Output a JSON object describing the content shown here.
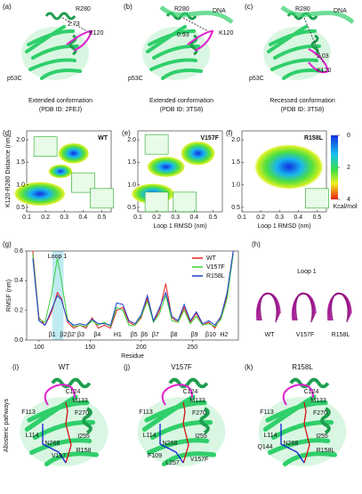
{
  "structures": [
    {
      "label": "(a)",
      "labels": [
        "R280",
        "2.73",
        "K120",
        "p53C"
      ],
      "caption": [
        "Extended conformation",
        "(PDB ID: 2FEJ)"
      ]
    },
    {
      "label": "(b)",
      "labels": [
        "R280",
        "DNA",
        "0.93",
        "K120",
        "p53C"
      ],
      "caption": [
        "Extended conformation",
        "(PDB ID: 3TS8)"
      ]
    },
    {
      "label": "(c)",
      "labels": [
        "R280",
        "DNA",
        "2.03",
        "K120",
        "p53C"
      ],
      "caption": [
        "Recessed conformation",
        "(PDB ID: 3TS8)"
      ]
    }
  ],
  "fel": {
    "ylabel": "K120-R280 Distance (nm)",
    "xlabel": "Loop 1 RMSD (nm)",
    "xlim": [
      0.1,
      0.55
    ],
    "xticks": [
      0.1,
      0.2,
      0.3,
      0.4,
      0.5
    ],
    "ylim": [
      0.4,
      2.2
    ],
    "yticks": [
      0.5,
      {
        "value": 1,
        "label": "1.0"
      },
      1.5,
      {
        "value": 2,
        "label": "2.0"
      }
    ],
    "panels": [
      {
        "label": "(d)",
        "name": "WT"
      },
      {
        "label": "(e)",
        "name": "V157F"
      },
      {
        "label": "(f)",
        "name": "R158L"
      }
    ],
    "colorbar": {
      "ticks": [
        0,
        2,
        4
      ],
      "unit": "Kcal/mol"
    }
  },
  "chart_data": {
    "type": "line",
    "label": "(g)",
    "ylabel": "RMSF (nm)",
    "xlabel": "Residue",
    "annotation": "Loop 1",
    "x": [
      94,
      100,
      106,
      112,
      118,
      122,
      128,
      134,
      140,
      146,
      152,
      158,
      164,
      170,
      176,
      182,
      188,
      194,
      200,
      206,
      212,
      218,
      224,
      230,
      236,
      242,
      248,
      254,
      260,
      266,
      272,
      278,
      284,
      290
    ],
    "series": [
      {
        "name": "WT",
        "color": "#e8231f",
        "values": [
          0.6,
          0.15,
          0.1,
          0.18,
          0.32,
          0.28,
          0.12,
          0.08,
          0.1,
          0.08,
          0.15,
          0.08,
          0.1,
          0.08,
          0.2,
          0.22,
          0.12,
          0.1,
          0.15,
          0.28,
          0.12,
          0.2,
          0.38,
          0.15,
          0.12,
          0.22,
          0.12,
          0.18,
          0.1,
          0.12,
          0.08,
          0.15,
          0.3,
          0.6
        ]
      },
      {
        "name": "V157F",
        "color": "#3cd03c",
        "values": [
          0.58,
          0.14,
          0.12,
          0.3,
          0.55,
          0.4,
          0.14,
          0.09,
          0.1,
          0.09,
          0.13,
          0.1,
          0.12,
          0.09,
          0.22,
          0.2,
          0.1,
          0.1,
          0.16,
          0.26,
          0.12,
          0.18,
          0.3,
          0.13,
          0.12,
          0.2,
          0.11,
          0.16,
          0.1,
          0.11,
          0.09,
          0.14,
          0.28,
          0.58
        ]
      },
      {
        "name": "R158L",
        "color": "#1d3fd0",
        "values": [
          0.55,
          0.13,
          0.1,
          0.2,
          0.3,
          0.27,
          0.13,
          0.1,
          0.11,
          0.1,
          0.14,
          0.11,
          0.11,
          0.1,
          0.25,
          0.24,
          0.13,
          0.11,
          0.17,
          0.3,
          0.13,
          0.22,
          0.32,
          0.16,
          0.13,
          0.24,
          0.13,
          0.19,
          0.11,
          0.13,
          0.1,
          0.16,
          0.32,
          0.6
        ]
      }
    ],
    "xlim": [
      88,
      295
    ],
    "xticks": [
      100,
      150,
      200,
      250
    ],
    "ylim": [
      0,
      0.6
    ],
    "yticks": [
      {
        "value": 0,
        "label": "0.0"
      },
      0.2,
      0.4,
      0.6
    ],
    "secondary_structure": [
      "β1",
      "β2",
      "β2'",
      "β3",
      "β4",
      "H1",
      "β5",
      "β6",
      "β7",
      "β8",
      "β9",
      "β10",
      "H2"
    ],
    "legend": "upper right"
  },
  "loops": {
    "label": "(h)",
    "title": "Loop 1",
    "names": [
      "WT",
      "V157F",
      "R158L"
    ]
  },
  "pathways": {
    "ylabel": "Allosteric pathways",
    "panels": [
      {
        "label": "(i)",
        "name": "WT",
        "residues": [
          "C124",
          "M133",
          "F113",
          "F270",
          "I255",
          "L114",
          "N268",
          "V157",
          "R158"
        ]
      },
      {
        "label": "(j)",
        "name": "V157F",
        "residues": [
          "C124",
          "M133",
          "F113",
          "F270",
          "I255",
          "L114",
          "N268",
          "F109",
          "L257",
          "V157F"
        ]
      },
      {
        "label": "(k)",
        "name": "R158L",
        "residues": [
          "C124",
          "M133",
          "F113",
          "F270",
          "I255",
          "L114",
          "Q144",
          "N268",
          "R158L"
        ]
      }
    ]
  }
}
